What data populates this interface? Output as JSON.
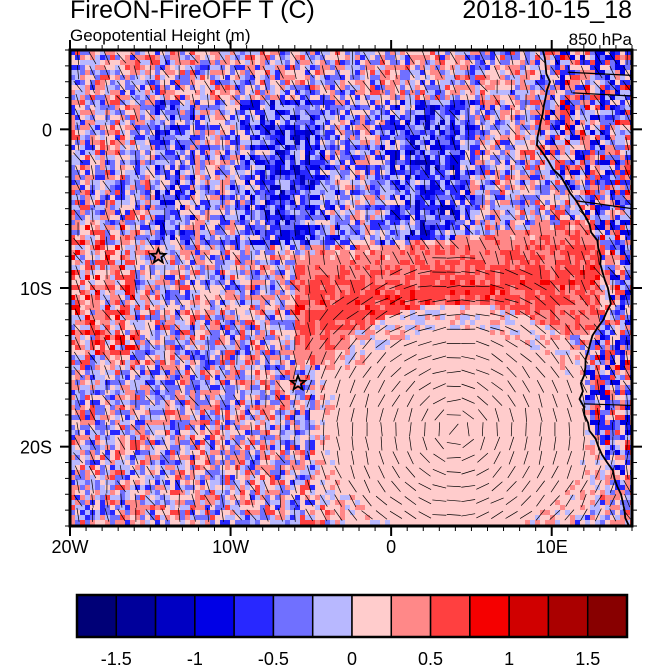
{
  "header": {
    "title": "FireON-FireOFF T (C)",
    "datetime": "2018-10-15_18",
    "subtitle": "Geopotential Height (m)",
    "level": "850 hPa"
  },
  "map": {
    "lon_range": [
      -20,
      15
    ],
    "lat_range": [
      -25,
      5
    ],
    "x_ticks": [
      {
        "value": -20,
        "label": "20W"
      },
      {
        "value": -10,
        "label": "10W"
      },
      {
        "value": 0,
        "label": "0"
      },
      {
        "value": 10,
        "label": "10E"
      }
    ],
    "y_ticks": [
      {
        "value": 0,
        "label": "0"
      },
      {
        "value": -10,
        "label": "10S"
      },
      {
        "value": -20,
        "label": "20S"
      }
    ],
    "markers": [
      {
        "lon": -14.5,
        "lat": -8,
        "symbol": "star"
      },
      {
        "lon": -5.8,
        "lat": -16,
        "symbol": "star"
      }
    ]
  },
  "colorbar": {
    "levels": [
      -1.5,
      -1.25,
      -1,
      -0.75,
      -0.5,
      -0.25,
      0,
      0.25,
      0.5,
      0.75,
      1,
      1.25,
      1.5
    ],
    "colors": [
      "#000077",
      "#00009b",
      "#0000c3",
      "#0000e6",
      "#2828ff",
      "#7070ff",
      "#b8b8ff",
      "#ffcccc",
      "#ff8888",
      "#ff4040",
      "#f50000",
      "#d00000",
      "#aa0000",
      "#880000"
    ],
    "labels": [
      "-1.5",
      "-1",
      "-0.5",
      "0",
      "0.5",
      "1",
      "1.5"
    ]
  }
}
